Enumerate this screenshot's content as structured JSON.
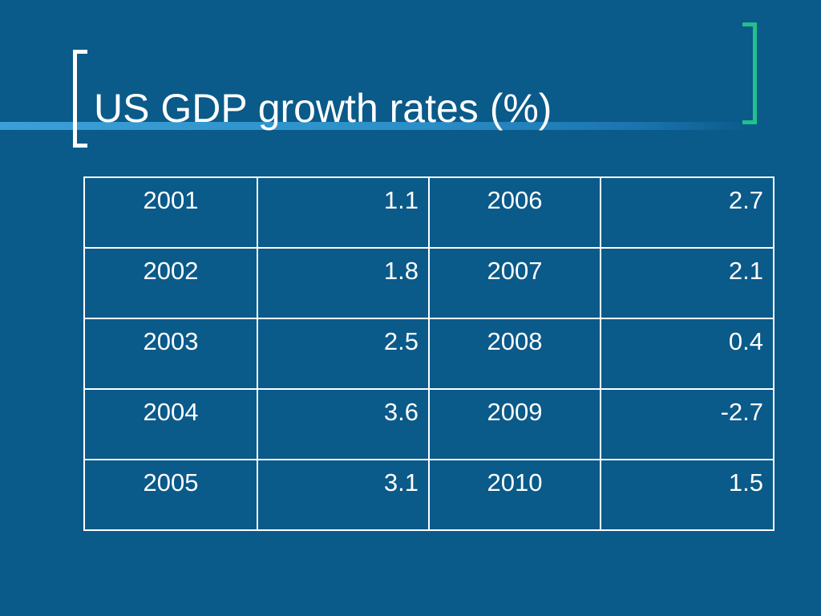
{
  "title": "US GDP growth rates (%)",
  "colors": {
    "background": "#0a5a8a",
    "band": "#3aa0d6",
    "left_bracket": "#ffffff",
    "right_bracket": "#22c08a",
    "text": "#ffffff"
  },
  "chart_data": {
    "type": "table",
    "title": "US GDP growth rates (%)",
    "rows": [
      {
        "year_a": "2001",
        "value_a": "1.1",
        "year_b": "2006",
        "value_b": "2.7"
      },
      {
        "year_a": "2002",
        "value_a": "1.8",
        "year_b": "2007",
        "value_b": "2.1"
      },
      {
        "year_a": "2003",
        "value_a": "2.5",
        "year_b": "2008",
        "value_b": "0.4"
      },
      {
        "year_a": "2004",
        "value_a": "3.6",
        "year_b": "2009",
        "value_b": "-2.7"
      },
      {
        "year_a": "2005",
        "value_a": "3.1",
        "year_b": "2010",
        "value_b": "1.5"
      }
    ]
  }
}
